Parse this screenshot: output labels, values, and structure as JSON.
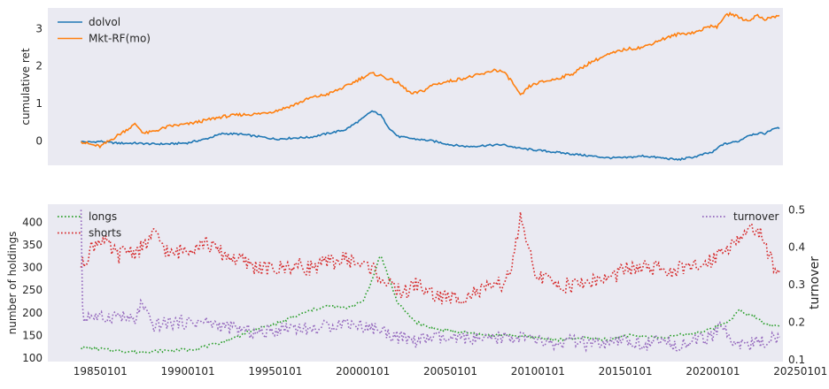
{
  "chart_data": [
    {
      "type": "line",
      "ylabel": "cumulative ret",
      "xlim": [
        1982.0,
        2024.0
      ],
      "ylim": [
        -0.65,
        3.55
      ],
      "yticks": [
        0,
        1,
        2,
        3
      ],
      "grid": false,
      "legend": "upper-left",
      "series": [
        {
          "name": "dolvol",
          "color": "#1f77b4",
          "x": [
            1983.9,
            1984.5,
            1985.0,
            1985.5,
            1986.0,
            1987.0,
            1988.0,
            1989.0,
            1990.0,
            1991.0,
            1992.0,
            1993.0,
            1994.0,
            1995.0,
            1996.0,
            1997.0,
            1998.0,
            1999.0,
            2000.0,
            2000.5,
            2001.0,
            2001.5,
            2002.0,
            2003.0,
            2004.0,
            2005.0,
            2006.0,
            2007.0,
            2008.0,
            2009.0,
            2010.0,
            2011.0,
            2012.0,
            2013.0,
            2014.0,
            2015.0,
            2016.0,
            2017.0,
            2018.0,
            2019.0,
            2019.5,
            2020.0,
            2020.5,
            2021.0,
            2021.5,
            2022.0,
            2022.5,
            2023.0,
            2023.5,
            2023.8
          ],
          "values": [
            -0.02,
            -0.03,
            -0.01,
            -0.04,
            -0.06,
            -0.06,
            -0.08,
            -0.08,
            -0.05,
            0.05,
            0.2,
            0.18,
            0.12,
            0.05,
            0.08,
            0.1,
            0.2,
            0.3,
            0.6,
            0.8,
            0.7,
            0.35,
            0.12,
            0.05,
            0.0,
            -0.1,
            -0.15,
            -0.12,
            -0.1,
            -0.2,
            -0.25,
            -0.3,
            -0.35,
            -0.4,
            -0.45,
            -0.45,
            -0.4,
            -0.45,
            -0.5,
            -0.42,
            -0.35,
            -0.3,
            -0.1,
            -0.05,
            0.0,
            0.15,
            0.2,
            0.2,
            0.35,
            0.33
          ]
        },
        {
          "name": "Mkt-RF(mo)",
          "color": "#ff7f0e",
          "x": [
            1983.9,
            1984.5,
            1985.0,
            1985.5,
            1986.0,
            1986.5,
            1987.0,
            1987.5,
            1988.0,
            1989.0,
            1990.0,
            1991.0,
            1992.0,
            1993.0,
            1994.0,
            1995.0,
            1996.0,
            1997.0,
            1998.0,
            1999.0,
            2000.0,
            2000.5,
            2001.0,
            2002.0,
            2002.8,
            2003.5,
            2004.0,
            2005.0,
            2006.0,
            2007.0,
            2007.5,
            2008.0,
            2008.5,
            2009.0,
            2009.5,
            2010.0,
            2011.0,
            2012.0,
            2013.0,
            2014.0,
            2015.0,
            2016.0,
            2017.0,
            2018.0,
            2019.0,
            2020.0,
            2020.2,
            2020.6,
            2021.0,
            2021.5,
            2022.0,
            2022.5,
            2023.0,
            2023.8
          ],
          "values": [
            -0.02,
            -0.1,
            -0.15,
            0.0,
            0.15,
            0.3,
            0.45,
            0.2,
            0.25,
            0.4,
            0.45,
            0.55,
            0.65,
            0.7,
            0.72,
            0.8,
            0.95,
            1.15,
            1.25,
            1.45,
            1.7,
            1.8,
            1.75,
            1.55,
            1.25,
            1.35,
            1.5,
            1.6,
            1.7,
            1.8,
            1.9,
            1.85,
            1.6,
            1.2,
            1.45,
            1.55,
            1.65,
            1.8,
            2.1,
            2.3,
            2.45,
            2.5,
            2.7,
            2.85,
            2.9,
            3.1,
            3.0,
            3.3,
            3.4,
            3.3,
            3.2,
            3.35,
            3.25,
            3.35
          ]
        }
      ]
    },
    {
      "type": "line",
      "ylabel": "number of holdings",
      "y2label": "turnover",
      "xlim": [
        1982.0,
        2024.0
      ],
      "ylim": [
        92,
        440
      ],
      "yticks": [
        100,
        150,
        200,
        250,
        300,
        350,
        400
      ],
      "y2lim": [
        0.095,
        0.515
      ],
      "y2ticks": [
        0.1,
        0.2,
        0.3,
        0.4,
        0.5
      ],
      "xticks": [
        "19850101",
        "19900101",
        "19950101",
        "20000101",
        "20050101",
        "20100101",
        "20150101",
        "20200101",
        "20250101"
      ],
      "grid": false,
      "legend": "upper-left (longs, shorts); upper-right (turnover)",
      "series": [
        {
          "name": "longs",
          "color": "#2ca02c",
          "axis": "left",
          "x": [
            1983.9,
            1985.0,
            1986.0,
            1987.0,
            1988.0,
            1989.0,
            1990.0,
            1991.0,
            1992.0,
            1993.0,
            1994.0,
            1995.0,
            1996.0,
            1997.0,
            1998.0,
            1999.0,
            2000.0,
            2000.6,
            2001.0,
            2002.0,
            2003.0,
            2004.0,
            2005.0,
            2006.0,
            2007.0,
            2008.0,
            2009.0,
            2010.0,
            2011.0,
            2012.0,
            2013.0,
            2014.0,
            2015.0,
            2016.0,
            2017.0,
            2018.0,
            2019.0,
            2020.0,
            2021.0,
            2021.5,
            2022.0,
            2022.5,
            2023.0,
            2023.8
          ],
          "values": [
            122,
            120,
            116,
            113,
            115,
            117,
            118,
            125,
            135,
            150,
            165,
            175,
            190,
            205,
            215,
            210,
            225,
            280,
            330,
            220,
            180,
            165,
            160,
            155,
            150,
            152,
            148,
            145,
            140,
            142,
            145,
            140,
            150,
            148,
            145,
            150,
            155,
            165,
            185,
            205,
            195,
            190,
            175,
            170
          ]
        },
        {
          "name": "shorts",
          "color": "#d62728",
          "axis": "left",
          "x": [
            1983.9,
            1984.5,
            1985.0,
            1985.5,
            1986.0,
            1986.5,
            1987.0,
            1987.5,
            1988.0,
            1988.5,
            1989.0,
            1990.0,
            1991.0,
            1992.0,
            1993.0,
            1994.0,
            1995.0,
            1996.0,
            1997.0,
            1998.0,
            1999.0,
            2000.0,
            2000.5,
            2001.0,
            2001.5,
            2002.0,
            2002.5,
            2003.0,
            2004.0,
            2005.0,
            2006.0,
            2007.0,
            2008.0,
            2008.6,
            2009.0,
            2009.3,
            2010.0,
            2011.0,
            2012.0,
            2013.0,
            2014.0,
            2015.0,
            2016.0,
            2017.0,
            2018.0,
            2019.0,
            2020.0,
            2020.5,
            2021.0,
            2021.5,
            2022.0,
            2022.5,
            2023.0,
            2023.4,
            2023.8
          ],
          "values": [
            300,
            345,
            365,
            345,
            325,
            340,
            335,
            345,
            375,
            355,
            325,
            345,
            355,
            330,
            315,
            300,
            295,
            305,
            300,
            310,
            320,
            305,
            300,
            280,
            260,
            250,
            245,
            265,
            240,
            230,
            240,
            250,
            265,
            310,
            420,
            350,
            280,
            265,
            260,
            270,
            275,
            295,
            300,
            295,
            295,
            300,
            320,
            340,
            350,
            365,
            375,
            395,
            340,
            310,
            290
          ]
        },
        {
          "name": "turnover",
          "color": "#9467bd",
          "axis": "right",
          "x": [
            1983.9,
            1984.0,
            1984.3,
            1985.0,
            1986.0,
            1987.0,
            1987.3,
            1988.0,
            1989.0,
            1990.0,
            1991.0,
            1992.0,
            1993.0,
            1994.0,
            1995.0,
            1996.0,
            1997.0,
            1998.0,
            1999.0,
            2000.0,
            2001.0,
            2002.0,
            2003.0,
            2004.0,
            2005.0,
            2006.0,
            2007.0,
            2008.0,
            2009.0,
            2010.0,
            2011.0,
            2012.0,
            2013.0,
            2014.0,
            2015.0,
            2016.0,
            2017.0,
            2018.0,
            2019.0,
            2020.0,
            2020.5,
            2021.0,
            2022.0,
            2023.0,
            2023.8
          ],
          "values": [
            0.5,
            0.2,
            0.22,
            0.21,
            0.22,
            0.2,
            0.25,
            0.19,
            0.2,
            0.2,
            0.2,
            0.19,
            0.18,
            0.17,
            0.18,
            0.19,
            0.18,
            0.19,
            0.2,
            0.19,
            0.18,
            0.16,
            0.15,
            0.16,
            0.15,
            0.16,
            0.15,
            0.16,
            0.16,
            0.15,
            0.14,
            0.15,
            0.14,
            0.14,
            0.15,
            0.14,
            0.15,
            0.14,
            0.15,
            0.16,
            0.2,
            0.15,
            0.14,
            0.15,
            0.16
          ]
        }
      ]
    }
  ]
}
